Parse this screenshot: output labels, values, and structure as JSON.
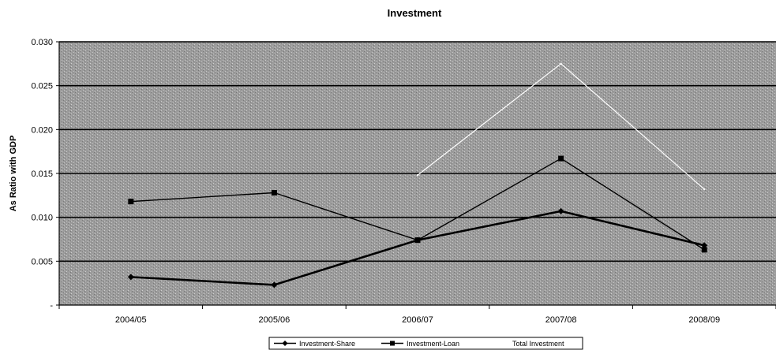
{
  "chart_data": {
    "type": "line",
    "title": "Investment",
    "xlabel": "",
    "ylabel": "As Ratio with GDP",
    "categories": [
      "2004/05",
      "2005/06",
      "2006/07",
      "2007/08",
      "2008/09"
    ],
    "ylim": [
      0,
      0.03
    ],
    "y_ticks": [
      {
        "value": 0,
        "label": "-"
      },
      {
        "value": 0.005,
        "label": "0.005"
      },
      {
        "value": 0.01,
        "label": "0.010"
      },
      {
        "value": 0.015,
        "label": "0.015"
      },
      {
        "value": 0.02,
        "label": "0.020"
      },
      {
        "value": 0.025,
        "label": "0.025"
      },
      {
        "value": 0.03,
        "label": "0.030"
      }
    ],
    "grid": true,
    "legend_position": "bottom",
    "series": [
      {
        "name": "Investment-Share",
        "values": [
          0.0032,
          0.0023,
          0.0074,
          0.0107,
          0.0068
        ],
        "color": "#000000",
        "marker": "diamond"
      },
      {
        "name": "Investment-Loan",
        "values": [
          0.0118,
          0.0128,
          0.0074,
          0.0167,
          0.0063
        ],
        "color": "#000000",
        "marker": "square"
      },
      {
        "name": "Total Investment",
        "values": [
          null,
          null,
          0.0148,
          0.0275,
          0.0132
        ],
        "color": "#ffffff",
        "marker": "none"
      }
    ],
    "plot_background": "#9a9a9a"
  }
}
